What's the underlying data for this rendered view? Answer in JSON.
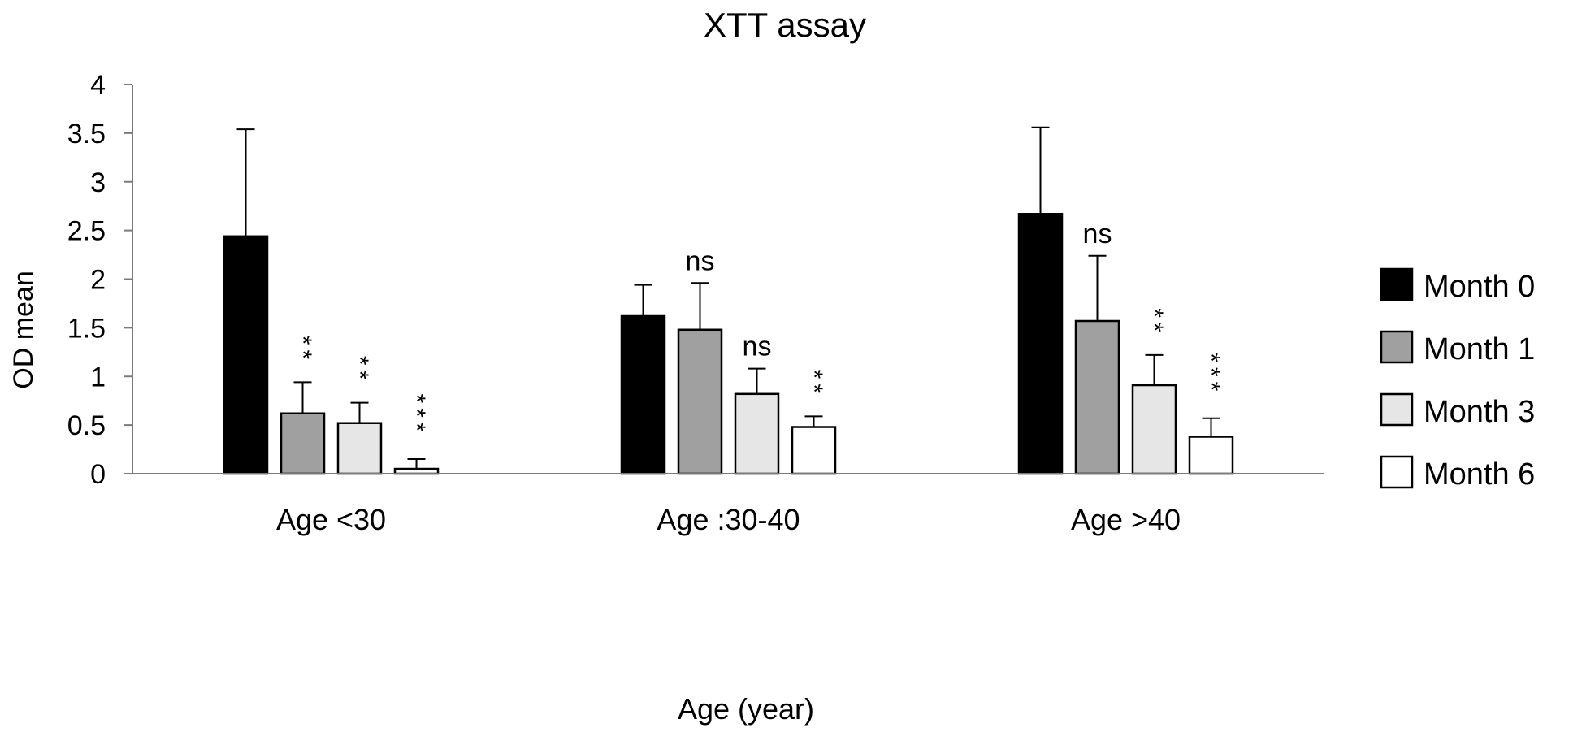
{
  "chart_data": {
    "type": "bar",
    "title": "XTT assay",
    "xlabel": "Age (year)",
    "ylabel": "OD mean",
    "ylim": [
      0,
      4
    ],
    "yticks": [
      "0",
      "0.5",
      "1",
      "1.5",
      "2",
      "2.5",
      "3",
      "3.5",
      "4"
    ],
    "grid": false,
    "legend_position": "right",
    "categories": [
      "Age <30",
      "Age :30-40",
      "Age >40"
    ],
    "series": [
      {
        "name": "Month 0",
        "color": "#000000",
        "values": [
          2.44,
          1.62,
          2.67
        ],
        "errors": [
          1.1,
          0.32,
          0.89
        ],
        "annotations": [
          "",
          "",
          ""
        ]
      },
      {
        "name": "Month 1",
        "color": "#a0a0a0",
        "values": [
          0.62,
          1.48,
          1.57
        ],
        "errors": [
          0.32,
          0.48,
          0.67
        ],
        "annotations": [
          "**",
          "ns",
          "ns"
        ]
      },
      {
        "name": "Month 3",
        "color": "#e6e6e6",
        "values": [
          0.52,
          0.82,
          0.91
        ],
        "errors": [
          0.21,
          0.26,
          0.31
        ],
        "annotations": [
          "**",
          "ns",
          "**"
        ]
      },
      {
        "name": "Month 6",
        "color": "#ffffff",
        "values": [
          0.05,
          0.48,
          0.38
        ],
        "errors": [
          0.1,
          0.11,
          0.19
        ],
        "annotations": [
          "***",
          "**",
          "***"
        ]
      }
    ]
  }
}
